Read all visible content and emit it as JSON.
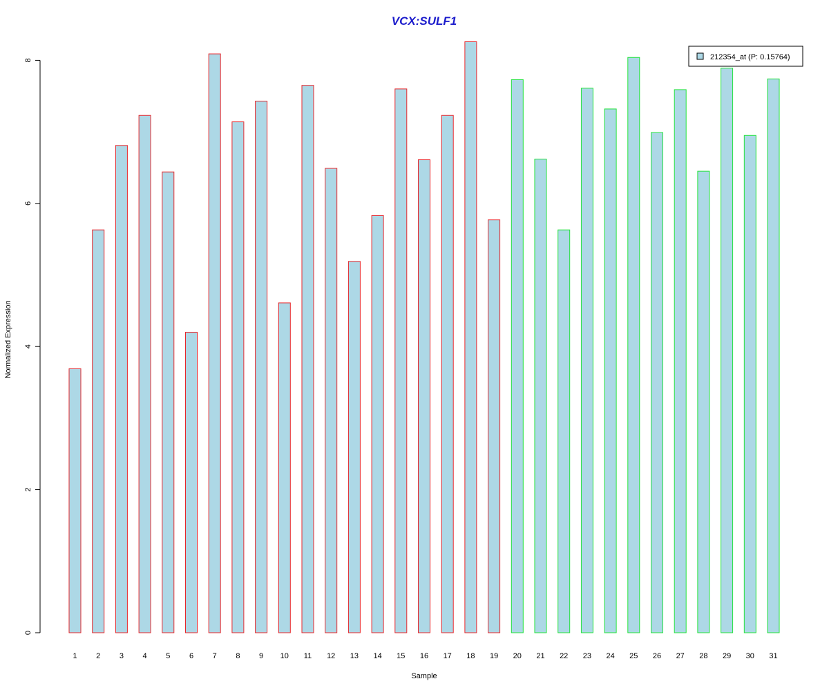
{
  "chart_data": {
    "type": "bar",
    "title": "VCX:SULF1",
    "xlabel": "Sample",
    "ylabel": "Normalized Expression",
    "categories": [
      "1",
      "2",
      "3",
      "4",
      "5",
      "6",
      "7",
      "8",
      "9",
      "10",
      "11",
      "12",
      "13",
      "14",
      "15",
      "16",
      "17",
      "18",
      "19",
      "20",
      "21",
      "22",
      "23",
      "24",
      "25",
      "26",
      "27",
      "28",
      "29",
      "30",
      "31"
    ],
    "values": [
      3.69,
      5.63,
      6.81,
      7.23,
      6.44,
      4.2,
      8.09,
      7.14,
      7.43,
      4.61,
      7.65,
      6.49,
      5.19,
      5.83,
      7.6,
      6.61,
      7.23,
      8.26,
      5.77,
      7.73,
      6.62,
      5.63,
      7.61,
      7.32,
      8.04,
      6.99,
      7.59,
      6.45,
      7.89,
      6.95,
      7.74
    ],
    "series_name": "212354_at (P: 0.15764)",
    "groups": [
      {
        "samples": [
          1,
          19
        ],
        "border_color": "#e8262a"
      },
      {
        "samples": [
          20,
          31
        ],
        "border_color": "#22e33a"
      }
    ],
    "fill_color": "#add8e6",
    "title_color": "#1c1ccc",
    "yticks": [
      0,
      2,
      4,
      6,
      8
    ],
    "ylim": [
      0,
      8.4
    ],
    "legend_position": "top-right",
    "grid": false
  }
}
